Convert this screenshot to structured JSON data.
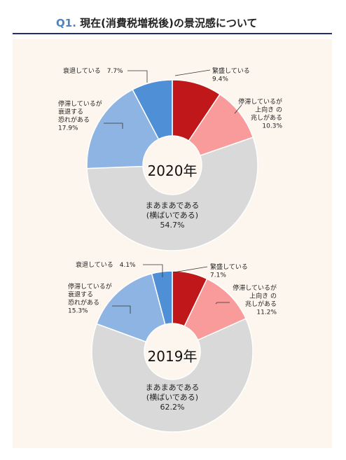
{
  "header": {
    "q_label": "Q1.",
    "title": "現在(消費税増税後)の景況感について"
  },
  "chart_data": [
    {
      "type": "pie",
      "title": "2020年",
      "slices": [
        {
          "name": "繁盛している",
          "value": 9.4,
          "color": "#c0171b",
          "label_lines": [
            "繁盛している",
            "9.4%"
          ]
        },
        {
          "name": "停滞しているが上向きの兆しがある",
          "value": 10.3,
          "color": "#f99a9b",
          "label_lines": [
            "停滞しているが",
            "上向き の",
            "兆しがある",
            "10.3%"
          ]
        },
        {
          "name": "まあまあである(横ばいである)",
          "value": 54.7,
          "color": "#d9d9d9",
          "label_lines": [
            "まあまあである",
            "(横ばいである)",
            "54.7%"
          ]
        },
        {
          "name": "停滞しているが衰退する恐れがある",
          "value": 17.9,
          "color": "#8eb4e3",
          "label_lines": [
            "停滞しているが",
            "衰退する",
            "恐れがある",
            "17.9%"
          ]
        },
        {
          "name": "衰退している",
          "value": 7.7,
          "color": "#4f8fd6",
          "label_lines": [
            "衰退している　7.7%"
          ]
        }
      ]
    },
    {
      "type": "pie",
      "title": "2019年",
      "slices": [
        {
          "name": "繁盛している",
          "value": 7.1,
          "color": "#c0171b",
          "label_lines": [
            "繁盛している",
            "7.1%"
          ]
        },
        {
          "name": "停滞しているが上向きの兆しがある",
          "value": 11.2,
          "color": "#f99a9b",
          "label_lines": [
            "停滞しているが",
            "上向き の",
            "兆しがある",
            "11.2%"
          ]
        },
        {
          "name": "まあまあである(横ばいである)",
          "value": 62.2,
          "color": "#d9d9d9",
          "label_lines": [
            "まあまあである",
            "(横ばいである)",
            "62.2%"
          ]
        },
        {
          "name": "停滞しているが衰退する恐れがある",
          "value": 15.3,
          "color": "#8eb4e3",
          "label_lines": [
            "停滞しているが",
            "衰退する",
            "恐れがある",
            "15.3%"
          ]
        },
        {
          "name": "衰退している",
          "value": 4.1,
          "color": "#4f8fd6",
          "label_lines": [
            "衰退している　4.1%"
          ]
        }
      ]
    }
  ]
}
